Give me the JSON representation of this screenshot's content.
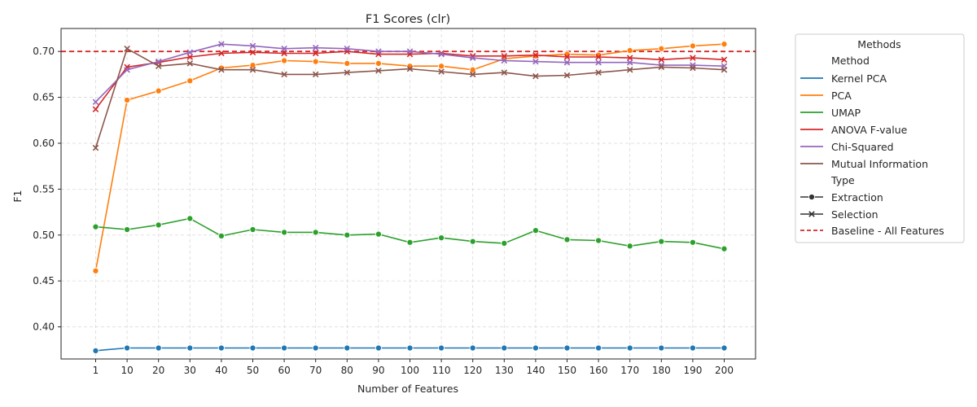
{
  "chart_data": {
    "type": "line",
    "title": "F1 Scores (clr)",
    "xlabel": "Number of Features",
    "ylabel": "F1",
    "x": [
      1,
      10,
      20,
      30,
      40,
      50,
      60,
      70,
      80,
      90,
      100,
      110,
      120,
      130,
      140,
      150,
      160,
      170,
      180,
      190,
      200
    ],
    "x_tick_labels": [
      "1",
      "10",
      "20",
      "30",
      "40",
      "50",
      "60",
      "70",
      "80",
      "90",
      "100",
      "110",
      "120",
      "130",
      "140",
      "150",
      "160",
      "170",
      "180",
      "190",
      "200"
    ],
    "ylim": [
      0.365,
      0.725
    ],
    "y_ticks": [
      0.4,
      0.45,
      0.5,
      0.55,
      0.6,
      0.65,
      0.7
    ],
    "y_tick_labels": [
      "0.40",
      "0.45",
      "0.50",
      "0.55",
      "0.60",
      "0.65",
      "0.70"
    ],
    "grid": true,
    "legend_placement": "outside-right",
    "legend": {
      "title": "Methods",
      "method_header": "Method",
      "type_header": "Type",
      "type_entries": [
        "Extraction",
        "Selection"
      ],
      "baseline_label": "Baseline - All Features"
    },
    "baseline": {
      "value": 0.7,
      "color": "#d62728"
    },
    "series": [
      {
        "name": "Kernel PCA",
        "type": "Extraction",
        "marker": "circle",
        "color": "#1f77b4",
        "values": [
          0.374,
          0.377,
          0.377,
          0.377,
          0.377,
          0.377,
          0.377,
          0.377,
          0.377,
          0.377,
          0.377,
          0.377,
          0.377,
          0.377,
          0.377,
          0.377,
          0.377,
          0.377,
          0.377,
          0.377,
          0.377
        ]
      },
      {
        "name": "PCA",
        "type": "Extraction",
        "marker": "circle",
        "color": "#ff7f0e",
        "values": [
          0.461,
          0.647,
          0.657,
          0.668,
          0.682,
          0.685,
          0.69,
          0.689,
          0.687,
          0.687,
          0.684,
          0.684,
          0.68,
          0.692,
          0.695,
          0.697,
          0.696,
          0.701,
          0.703,
          0.706,
          0.708
        ]
      },
      {
        "name": "UMAP",
        "type": "Extraction",
        "marker": "circle",
        "color": "#2ca02c",
        "values": [
          0.509,
          0.506,
          0.511,
          0.518,
          0.499,
          0.506,
          0.503,
          0.503,
          0.5,
          0.501,
          0.492,
          0.497,
          0.493,
          0.491,
          0.505,
          0.495,
          0.494,
          0.488,
          0.493,
          0.492,
          0.485
        ]
      },
      {
        "name": "ANOVA F-value",
        "type": "Selection",
        "marker": "x",
        "color": "#d62728",
        "values": [
          0.637,
          0.683,
          0.688,
          0.694,
          0.698,
          0.699,
          0.698,
          0.698,
          0.7,
          0.697,
          0.697,
          0.698,
          0.695,
          0.695,
          0.696,
          0.694,
          0.694,
          0.693,
          0.691,
          0.693,
          0.691
        ]
      },
      {
        "name": "Chi-Squared",
        "type": "Selection",
        "marker": "x",
        "color": "#9467bd",
        "values": [
          0.645,
          0.68,
          0.689,
          0.699,
          0.708,
          0.706,
          0.703,
          0.704,
          0.703,
          0.7,
          0.7,
          0.697,
          0.693,
          0.69,
          0.689,
          0.688,
          0.688,
          0.688,
          0.685,
          0.685,
          0.684
        ]
      },
      {
        "name": "Mutual Information",
        "type": "Selection",
        "marker": "x",
        "color": "#8c564b",
        "values": [
          0.595,
          0.703,
          0.684,
          0.687,
          0.68,
          0.68,
          0.675,
          0.675,
          0.677,
          0.679,
          0.681,
          0.678,
          0.675,
          0.677,
          0.673,
          0.674,
          0.677,
          0.68,
          0.683,
          0.682,
          0.68
        ]
      }
    ]
  }
}
